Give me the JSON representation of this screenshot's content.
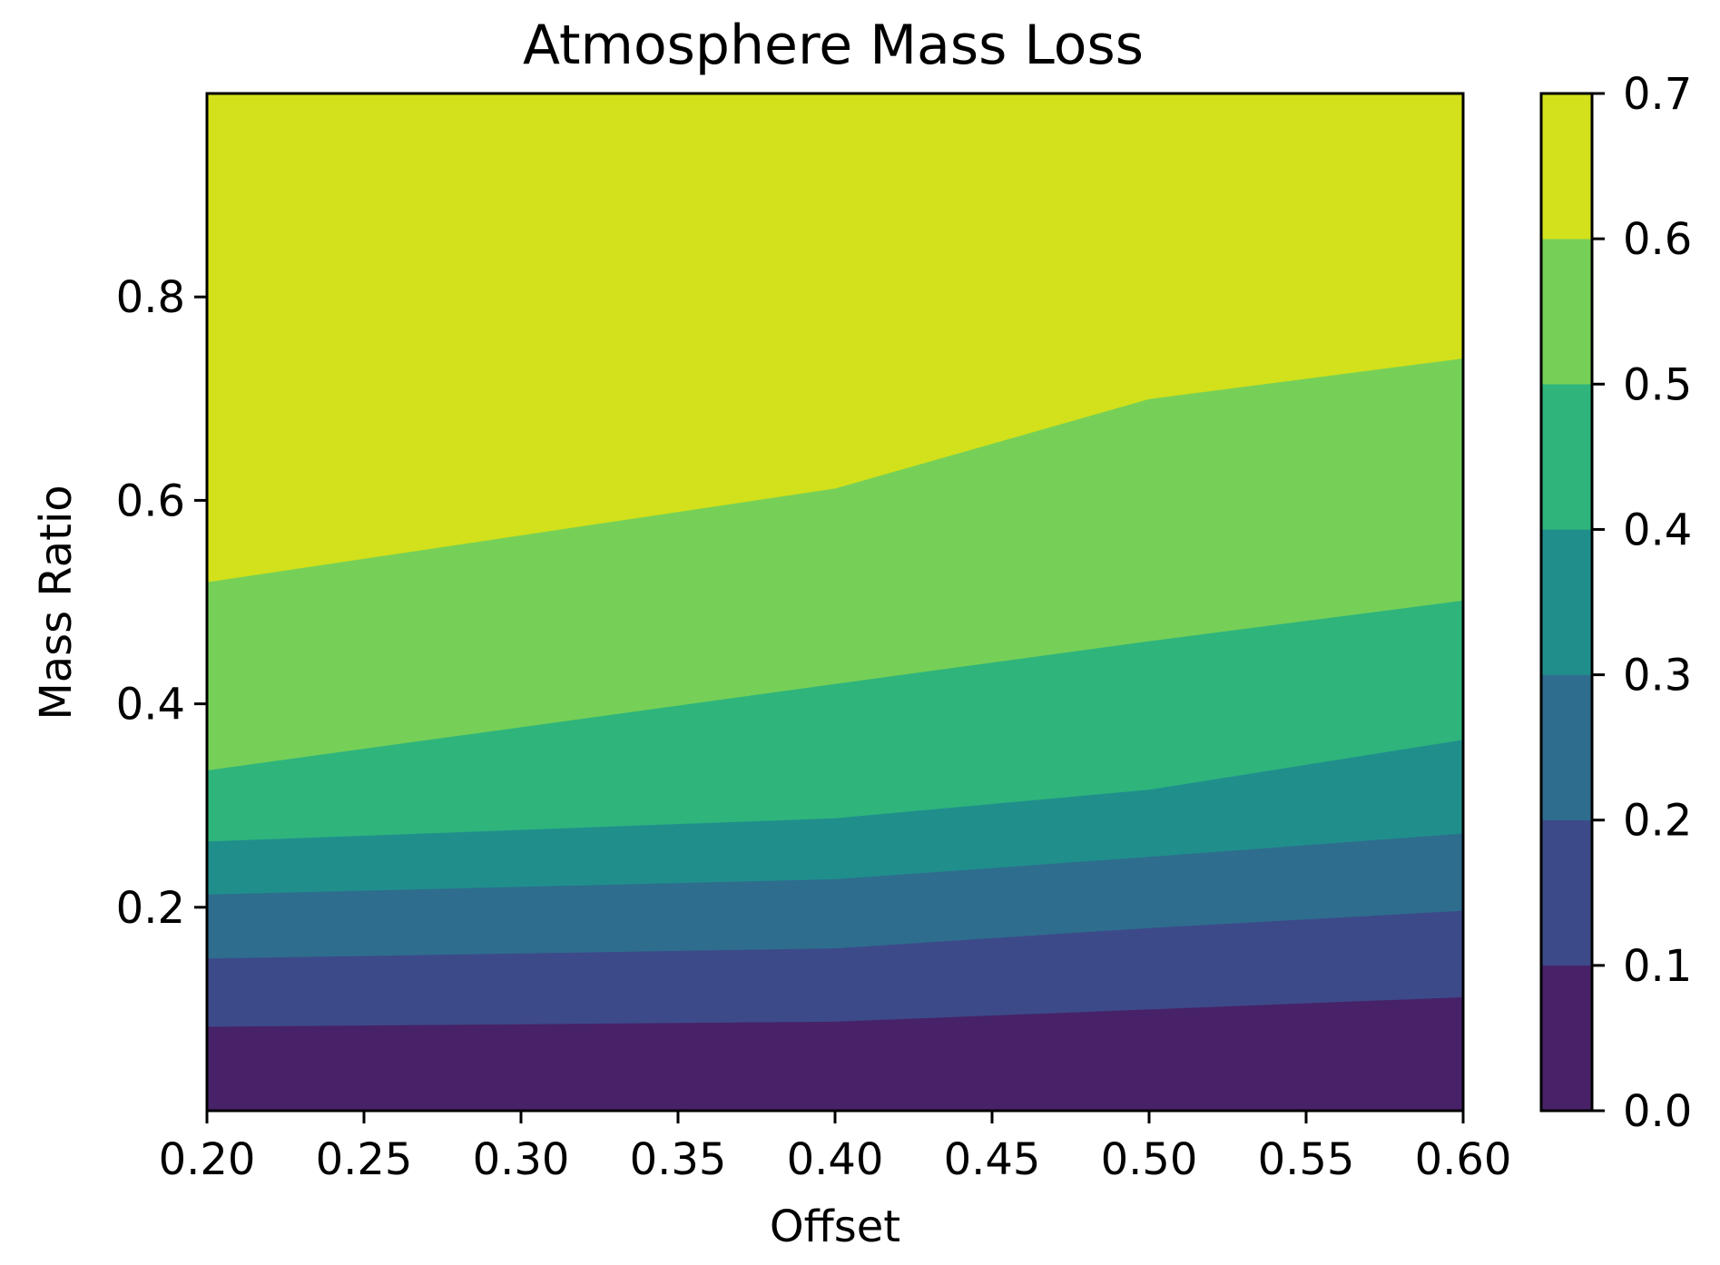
{
  "chart_data": {
    "type": "contourf",
    "title": "Atmosphere Mass Loss",
    "xlabel": "Offset",
    "ylabel": "Mass Ratio",
    "xlim": [
      0.2,
      0.6
    ],
    "ylim": [
      0.0,
      1.0
    ],
    "x_ticks": [
      "0.20",
      "0.25",
      "0.30",
      "0.35",
      "0.40",
      "0.45",
      "0.50",
      "0.55",
      "0.60"
    ],
    "y_ticks": [
      "0.2",
      "0.4",
      "0.6",
      "0.8"
    ],
    "colorbar": {
      "ticks": [
        "0.0",
        "0.1",
        "0.2",
        "0.3",
        "0.4",
        "0.5",
        "0.6",
        "0.7"
      ],
      "levels": [
        0.0,
        0.1,
        0.2,
        0.3,
        0.4,
        0.5,
        0.6,
        0.7
      ]
    },
    "colors": [
      "#472268",
      "#3d4a89",
      "#2e6d8e",
      "#208f8c",
      "#2fb47c",
      "#76d057",
      "#d2e11b"
    ],
    "contour_boundaries": [
      {
        "level": 0.1,
        "x": [
          0.2,
          0.4,
          0.5,
          0.6
        ],
        "y": [
          0.083,
          0.088,
          0.1,
          0.112
        ]
      },
      {
        "level": 0.2,
        "x": [
          0.2,
          0.4,
          0.5,
          0.6
        ],
        "y": [
          0.15,
          0.16,
          0.18,
          0.197
        ]
      },
      {
        "level": 0.3,
        "x": [
          0.2,
          0.4,
          0.5,
          0.6
        ],
        "y": [
          0.213,
          0.228,
          0.25,
          0.273
        ]
      },
      {
        "level": 0.4,
        "x": [
          0.2,
          0.4,
          0.5,
          0.6
        ],
        "y": [
          0.265,
          0.288,
          0.316,
          0.365
        ]
      },
      {
        "level": 0.5,
        "x": [
          0.2,
          0.4,
          0.5,
          0.6
        ],
        "y": [
          0.335,
          0.42,
          0.462,
          0.502
        ]
      },
      {
        "level": 0.6,
        "x": [
          0.2,
          0.4,
          0.5,
          0.6
        ],
        "y": [
          0.52,
          0.612,
          0.7,
          0.74
        ]
      }
    ]
  }
}
